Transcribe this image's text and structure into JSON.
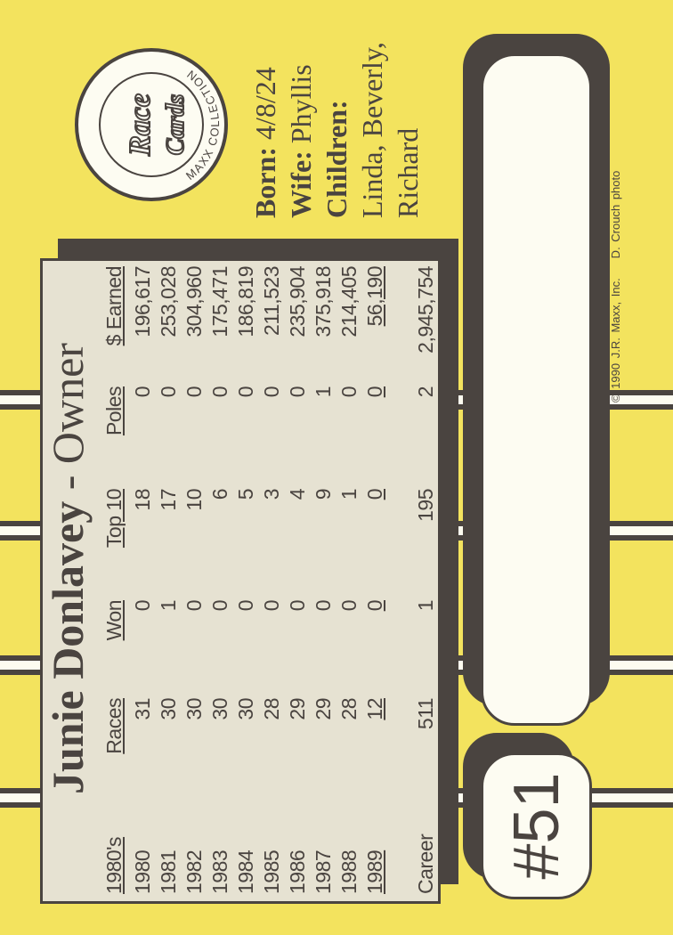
{
  "card": {
    "title_name": "Junie Donlavey",
    "title_sep": " - ",
    "title_role": "Owner",
    "number": "#51",
    "logo": {
      "brand": "Race Cards",
      "ring_text": "MAXX COLLECTION"
    },
    "bio": {
      "born_label": "Born:",
      "born": "4/8/24",
      "wife_label": "Wife:",
      "wife": "Phyllis",
      "children_label": "Children:",
      "children_line1": "Linda, Beverly,",
      "children_line2": "Richard"
    },
    "copyright": "© 1990 J.R. Maxx, Inc.",
    "photo_credit": "D. Crouch photo",
    "colors": {
      "card": "#f3e35e",
      "dark": "#4a4440",
      "panel": "#e6e2d2"
    }
  },
  "stats": {
    "headers": [
      "1980's",
      "Races",
      "Won",
      "Top 10",
      "Poles",
      "$ Earned"
    ],
    "rows": [
      [
        "1980",
        "31",
        "0",
        "18",
        "0",
        "196,617"
      ],
      [
        "1981",
        "30",
        "1",
        "17",
        "0",
        "253,028"
      ],
      [
        "1982",
        "30",
        "0",
        "10",
        "0",
        "304,960"
      ],
      [
        "1983",
        "30",
        "0",
        "6",
        "0",
        "175,471"
      ],
      [
        "1984",
        "30",
        "0",
        "5",
        "0",
        "186,819"
      ],
      [
        "1985",
        "28",
        "0",
        "3",
        "0",
        "211,523"
      ],
      [
        "1986",
        "29",
        "0",
        "4",
        "0",
        "235,904"
      ],
      [
        "1987",
        "29",
        "0",
        "9",
        "1",
        "375,918"
      ],
      [
        "1988",
        "28",
        "0",
        "1",
        "0",
        "214,405"
      ],
      [
        "1989",
        "12",
        "0",
        "0",
        "0",
        "56,190"
      ]
    ],
    "career": [
      "Career",
      "511",
      "1",
      "195",
      "2",
      "2,945,754"
    ]
  }
}
